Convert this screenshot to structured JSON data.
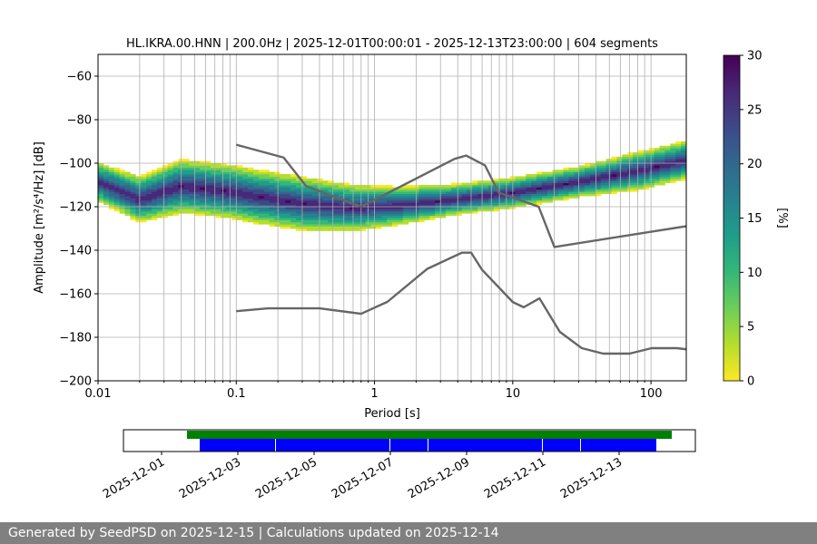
{
  "chart_data": {
    "type": "heatmap",
    "title": "HL.IKRA.00.HNN | 200.0Hz | 2025-12-01T00:00:01 - 2025-12-13T23:00:00 | 604 segments",
    "xlabel": "Period [s]",
    "ylabel": "Amplitude [m²/s⁴/Hz] [dB]",
    "x_scale": "log",
    "xlim": [
      0.01,
      180
    ],
    "ylim": [
      -200,
      -50
    ],
    "x_ticks": [
      0.01,
      0.1,
      1,
      10,
      100
    ],
    "x_tick_labels": [
      "0.01",
      "0.1",
      "1",
      "10",
      "100"
    ],
    "y_ticks": [
      -200,
      -180,
      -160,
      -140,
      -120,
      -100,
      -80,
      -60
    ],
    "y_tick_labels": [
      "−200",
      "−180",
      "−160",
      "−140",
      "−120",
      "−100",
      "−80",
      "−60"
    ],
    "grid": true,
    "colorbar": {
      "label": "[%]",
      "range": [
        0,
        30
      ],
      "ticks": [
        0,
        5,
        10,
        15,
        20,
        25,
        30
      ],
      "tick_labels": [
        "0",
        "5",
        "10",
        "15",
        "20",
        "25",
        "30"
      ],
      "colormap": [
        "#fde725",
        "#b5de2b",
        "#6ece58",
        "#35b779",
        "#1f9e89",
        "#26828e",
        "#31688e",
        "#3e4989",
        "#482878",
        "#440154"
      ]
    },
    "median_band": [
      {
        "period": 0.01,
        "db": -109,
        "spread": 5
      },
      {
        "period": 0.02,
        "db": -117,
        "spread": 6
      },
      {
        "period": 0.04,
        "db": -111,
        "spread": 7
      },
      {
        "period": 0.08,
        "db": -113,
        "spread": 7
      },
      {
        "period": 0.15,
        "db": -116,
        "spread": 7
      },
      {
        "period": 0.3,
        "db": -119,
        "spread": 7
      },
      {
        "period": 0.7,
        "db": -121,
        "spread": 6
      },
      {
        "period": 1.5,
        "db": -120,
        "spread": 5
      },
      {
        "period": 4,
        "db": -117,
        "spread": 4
      },
      {
        "period": 10,
        "db": -114,
        "spread": 4
      },
      {
        "period": 30,
        "db": -109,
        "spread": 4
      },
      {
        "period": 80,
        "db": -104,
        "spread": 5
      },
      {
        "period": 180,
        "db": -99,
        "spread": 5
      }
    ],
    "noise_models": [
      {
        "name": "high",
        "color": "#666666",
        "points": [
          [
            0.1,
            -91.5
          ],
          [
            0.22,
            -97.4
          ],
          [
            0.32,
            -110.5
          ],
          [
            0.8,
            -120
          ],
          [
            3.8,
            -98
          ],
          [
            4.6,
            -96.5
          ],
          [
            6.3,
            -101
          ],
          [
            7.9,
            -113.5
          ],
          [
            15.4,
            -120
          ],
          [
            20,
            -138.5
          ],
          [
            354.8,
            -126
          ]
        ]
      },
      {
        "name": "low",
        "color": "#666666",
        "points": [
          [
            0.1,
            -168
          ],
          [
            0.17,
            -166.7
          ],
          [
            0.4,
            -166.7
          ],
          [
            0.8,
            -169.2
          ],
          [
            1.24,
            -163.7
          ],
          [
            2.4,
            -148.6
          ],
          [
            4.3,
            -141.1
          ],
          [
            5,
            -141.1
          ],
          [
            6,
            -149
          ],
          [
            10,
            -163.8
          ],
          [
            12,
            -166.2
          ],
          [
            15.6,
            -162.1
          ],
          [
            21.9,
            -177.5
          ],
          [
            31.6,
            -185
          ],
          [
            45,
            -187.5
          ],
          [
            70,
            -187.5
          ],
          [
            101,
            -185
          ],
          [
            154,
            -185
          ],
          [
            328,
            -187.5
          ]
        ]
      }
    ],
    "timeline": {
      "date_range": [
        "2025-11-30",
        "2025-12-15"
      ],
      "tick_labels": [
        "2025-12-01",
        "2025-12-03",
        "2025-12-05",
        "2025-12-07",
        "2025-12-09",
        "2025-12-11",
        "2025-12-13"
      ],
      "tick_dates": [
        "2025-12-01",
        "2025-12-03",
        "2025-12-05",
        "2025-12-07",
        "2025-12-09",
        "2025-12-11",
        "2025-12-13"
      ],
      "available": {
        "color": "#008000",
        "range": [
          "2025-12-01",
          "2025-12-14"
        ]
      },
      "used_segments": {
        "color": "#0000ff",
        "ranges": [
          [
            "2025-12-02",
            "2025-12-04"
          ],
          [
            "2025-12-04",
            "2025-12-07"
          ],
          [
            "2025-12-07",
            "2025-12-08"
          ],
          [
            "2025-12-08",
            "2025-12-11"
          ],
          [
            "2025-12-11",
            "2025-12-12"
          ],
          [
            "2025-12-12",
            "2025-12-14"
          ]
        ]
      }
    }
  },
  "footer": {
    "text": "Generated by SeedPSD on 2025-12-15 | Calculations updated on 2025-12-14"
  }
}
